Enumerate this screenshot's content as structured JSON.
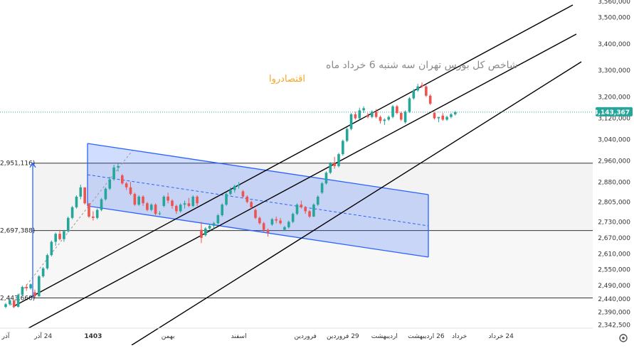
{
  "title": "شاخص کل بورس تهران سه شنبه 6 خرداد ماه",
  "brand": "اقتصادروا",
  "settings_icon": "settings-gear-icon",
  "chart_data": {
    "type": "candlestick",
    "y_axis": {
      "min": 2330000,
      "max": 3560000,
      "position": "right",
      "ticks": [
        "3,560,000",
        "3,500,000",
        "3,400,000",
        "3,300,000",
        "3,200,000",
        "3,120,000",
        "3,040,000",
        "2,960,000",
        "2,880,000",
        "2,805,000",
        "2,730,000",
        "2,670,000",
        "2,610,000",
        "2,550,000",
        "2,490,000",
        "2,440,000",
        "2,390,000",
        "2,342,500"
      ],
      "tick_values": [
        3560000,
        3500000,
        3400000,
        3300000,
        3200000,
        3120000,
        3040000,
        2960000,
        2880000,
        2805000,
        2730000,
        2670000,
        2610000,
        2550000,
        2490000,
        2440000,
        2390000,
        2342500
      ]
    },
    "x_axis": {
      "labels": [
        "آذر",
        "24 آذر",
        "1403",
        "بهمن",
        "اسفند",
        "فروردین",
        "29 فروردین",
        "اردیبهشت",
        "26 اردیبهشت",
        "خرداد",
        "24 خرداد"
      ],
      "label_indices": [
        0,
        9,
        21,
        39,
        56,
        72,
        81,
        91,
        101,
        109,
        119
      ]
    },
    "last_price": "3,143,367",
    "last_price_value": 3143367,
    "horizontal_levels": [
      {
        "label": "2,951,116)",
        "value": 2951116
      },
      {
        "label": "2,697,388)",
        "value": 2697388
      },
      {
        "label": "2,443,660)",
        "value": 2443660
      }
    ],
    "colors": {
      "up": "#26a69a",
      "down": "#ef5350",
      "channel": "#2962ff",
      "channel_fill": "#2962ff",
      "trend": "#000000",
      "price_line": "#26a69a"
    },
    "candles": [
      [
        2410000,
        2425000,
        2405000,
        2420000
      ],
      [
        2420000,
        2440000,
        2415000,
        2435000
      ],
      [
        2435000,
        2430000,
        2405000,
        2410000
      ],
      [
        2410000,
        2460000,
        2408000,
        2455000
      ],
      [
        2455000,
        2490000,
        2450000,
        2485000
      ],
      [
        2485000,
        2495000,
        2470000,
        2480000
      ],
      [
        2480000,
        2498000,
        2475000,
        2495000
      ],
      [
        2465000,
        2475000,
        2445000,
        2450000
      ],
      [
        2450000,
        2530000,
        2448000,
        2525000
      ],
      [
        2525000,
        2560000,
        2520000,
        2555000
      ],
      [
        2555000,
        2610000,
        2550000,
        2605000
      ],
      [
        2605000,
        2660000,
        2600000,
        2655000
      ],
      [
        2655000,
        2690000,
        2640000,
        2685000
      ],
      [
        2685000,
        2700000,
        2660000,
        2665000
      ],
      [
        2665000,
        2700000,
        2655000,
        2695000
      ],
      [
        2695000,
        2750000,
        2690000,
        2745000
      ],
      [
        2745000,
        2790000,
        2740000,
        2785000
      ],
      [
        2785000,
        2830000,
        2780000,
        2825000
      ],
      [
        2825000,
        2870000,
        2815000,
        2860000
      ],
      [
        2860000,
        2850000,
        2795000,
        2800000
      ],
      [
        2800000,
        2790000,
        2745000,
        2750000
      ],
      [
        2750000,
        2770000,
        2735000,
        2745000
      ],
      [
        2745000,
        2780000,
        2740000,
        2775000
      ],
      [
        2775000,
        2820000,
        2770000,
        2815000
      ],
      [
        2815000,
        2860000,
        2810000,
        2855000
      ],
      [
        2855000,
        2900000,
        2850000,
        2890000
      ],
      [
        2890000,
        2945000,
        2885000,
        2935000
      ],
      [
        2935000,
        2950000,
        2920000,
        2940000
      ],
      [
        2905000,
        2910000,
        2870000,
        2875000
      ],
      [
        2875000,
        2880000,
        2850000,
        2860000
      ],
      [
        2860000,
        2880000,
        2830000,
        2835000
      ],
      [
        2835000,
        2840000,
        2790000,
        2795000
      ],
      [
        2795000,
        2830000,
        2790000,
        2825000
      ],
      [
        2825000,
        2830000,
        2790000,
        2800000
      ],
      [
        2800000,
        2805000,
        2770000,
        2775000
      ],
      [
        2775000,
        2800000,
        2770000,
        2795000
      ],
      [
        2795000,
        2800000,
        2755000,
        2760000
      ],
      [
        2760000,
        2770000,
        2755000,
        2762000
      ],
      [
        2790000,
        2830000,
        2785000,
        2825000
      ],
      [
        2825000,
        2840000,
        2800000,
        2810000
      ],
      [
        2810000,
        2815000,
        2780000,
        2790000
      ],
      [
        2790000,
        2795000,
        2760000,
        2770000
      ],
      [
        2770000,
        2800000,
        2765000,
        2795000
      ],
      [
        2795000,
        2810000,
        2780000,
        2800000
      ],
      [
        2800000,
        2820000,
        2785000,
        2790000
      ],
      [
        2790000,
        2830000,
        2785000,
        2825000
      ],
      [
        2825000,
        2830000,
        2790000,
        2800000
      ],
      [
        2700000,
        2730000,
        2650000,
        2670000
      ],
      [
        2680000,
        2710000,
        2675000,
        2705000
      ],
      [
        2705000,
        2720000,
        2700000,
        2715000
      ],
      [
        2715000,
        2730000,
        2705000,
        2725000
      ],
      [
        2725000,
        2760000,
        2720000,
        2755000
      ],
      [
        2755000,
        2800000,
        2750000,
        2795000
      ],
      [
        2795000,
        2840000,
        2790000,
        2835000
      ],
      [
        2835000,
        2860000,
        2830000,
        2850000
      ],
      [
        2850000,
        2870000,
        2840000,
        2865000
      ],
      [
        2865000,
        2880000,
        2855000,
        2870000
      ],
      [
        2845000,
        2850000,
        2820000,
        2825000
      ],
      [
        2825000,
        2830000,
        2800000,
        2805000
      ],
      [
        2805000,
        2810000,
        2780000,
        2785000
      ],
      [
        2775000,
        2780000,
        2740000,
        2745000
      ],
      [
        2745000,
        2750000,
        2720000,
        2725000
      ],
      [
        2725000,
        2730000,
        2690000,
        2700000
      ],
      [
        2700000,
        2705000,
        2675000,
        2690000
      ],
      [
        2720000,
        2745000,
        2715000,
        2740000
      ],
      [
        2740000,
        2750000,
        2725000,
        2735000
      ],
      [
        2735000,
        2745000,
        2720000,
        2725000
      ],
      [
        2700000,
        2715000,
        2695000,
        2710000
      ],
      [
        2710000,
        2735000,
        2705000,
        2730000
      ],
      [
        2730000,
        2765000,
        2725000,
        2760000
      ],
      [
        2760000,
        2800000,
        2755000,
        2795000
      ],
      [
        2795000,
        2810000,
        2780000,
        2785000
      ],
      [
        2785000,
        2790000,
        2760000,
        2770000
      ],
      [
        2770000,
        2775000,
        2745000,
        2750000
      ],
      [
        2750000,
        2800000,
        2748000,
        2795000
      ],
      [
        2795000,
        2830000,
        2790000,
        2825000
      ],
      [
        2840000,
        2880000,
        2835000,
        2875000
      ],
      [
        2875000,
        2920000,
        2870000,
        2915000
      ],
      [
        2915000,
        2955000,
        2910000,
        2950000
      ],
      [
        2950000,
        2975000,
        2930000,
        2940000
      ],
      [
        2940000,
        2990000,
        2935000,
        2985000
      ],
      [
        2985000,
        3040000,
        2980000,
        3035000
      ],
      [
        3035000,
        3085000,
        3030000,
        3080000
      ],
      [
        3080000,
        3140000,
        3075000,
        3135000
      ],
      [
        3135000,
        3145000,
        3115000,
        3120000
      ],
      [
        3120000,
        3160000,
        3115000,
        3150000
      ],
      [
        3150000,
        3165000,
        3140000,
        3158000
      ],
      [
        3130000,
        3140000,
        3120000,
        3125000
      ],
      [
        3125000,
        3150000,
        3120000,
        3145000
      ],
      [
        3145000,
        3155000,
        3120000,
        3125000
      ],
      [
        3125000,
        3130000,
        3100000,
        3110000
      ],
      [
        3110000,
        3120000,
        3095000,
        3115000
      ],
      [
        3115000,
        3130000,
        3110000,
        3125000
      ],
      [
        3125000,
        3170000,
        3120000,
        3165000
      ],
      [
        3165000,
        3170000,
        3135000,
        3140000
      ],
      [
        3140000,
        3145000,
        3110000,
        3115000
      ],
      [
        3105000,
        3150000,
        3100000,
        3145000
      ],
      [
        3145000,
        3200000,
        3140000,
        3195000
      ],
      [
        3195000,
        3230000,
        3190000,
        3225000
      ],
      [
        3225000,
        3250000,
        3220000,
        3240000
      ],
      [
        3245000,
        3255000,
        3235000,
        3240000
      ],
      [
        3240000,
        3245000,
        3200000,
        3205000
      ],
      [
        3205000,
        3210000,
        3170000,
        3175000
      ],
      [
        3140000,
        3145000,
        3115000,
        3120000
      ],
      [
        3120000,
        3125000,
        3105000,
        3125000
      ],
      [
        3130000,
        3140000,
        3110000,
        3115000
      ],
      [
        3115000,
        3130000,
        3110000,
        3125000
      ],
      [
        3125000,
        3140000,
        3120000,
        3135000
      ],
      [
        3135000,
        3148000,
        3130000,
        3143367
      ]
    ]
  }
}
